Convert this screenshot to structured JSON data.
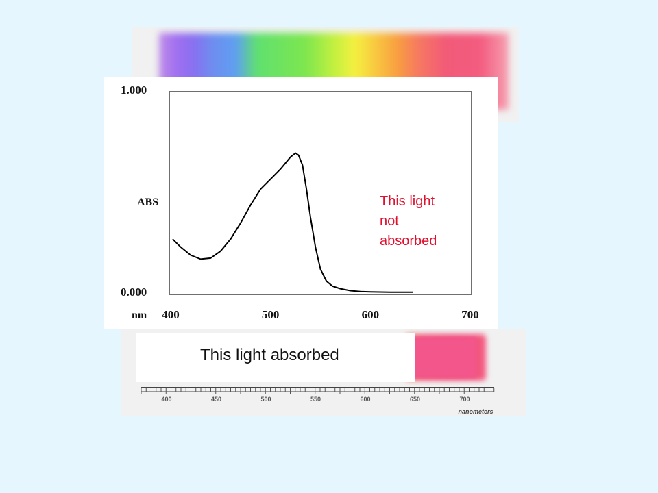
{
  "chart_data": {
    "type": "line",
    "title": "",
    "xlabel": "nm",
    "ylabel": "ABS",
    "xlim": [
      400,
      700
    ],
    "ylim": [
      0.0,
      1.0
    ],
    "x_ticks": [
      "400",
      "500",
      "600",
      "700"
    ],
    "y_ticks": [
      "1.000",
      "0.000"
    ],
    "grid": false,
    "line_color": "#000000",
    "series": [
      {
        "x": [
          402,
          410,
          420,
          430,
          440,
          450,
          460,
          470,
          480,
          490,
          500,
          510,
          515,
          520,
          525,
          528,
          532,
          536,
          540,
          545,
          550,
          556,
          562,
          570,
          580,
          590,
          600,
          610,
          620,
          630,
          643
        ],
        "y": [
          0.27,
          0.23,
          0.19,
          0.17,
          0.175,
          0.21,
          0.27,
          0.35,
          0.44,
          0.52,
          0.57,
          0.62,
          0.65,
          0.68,
          0.7,
          0.69,
          0.64,
          0.52,
          0.38,
          0.23,
          0.12,
          0.06,
          0.035,
          0.022,
          0.012,
          0.008,
          0.006,
          0.005,
          0.004,
          0.004,
          0.004
        ]
      }
    ]
  },
  "annotations": {
    "not_absorbed": "This light not absorbed",
    "absorbed": "This light absorbed"
  },
  "nm_scale": {
    "ticks": [
      "400",
      "450",
      "500",
      "550",
      "600",
      "650",
      "700"
    ],
    "unit": "nanometers"
  },
  "colors": {
    "background": "#e6f6ff",
    "annotation": "#e0102e"
  }
}
